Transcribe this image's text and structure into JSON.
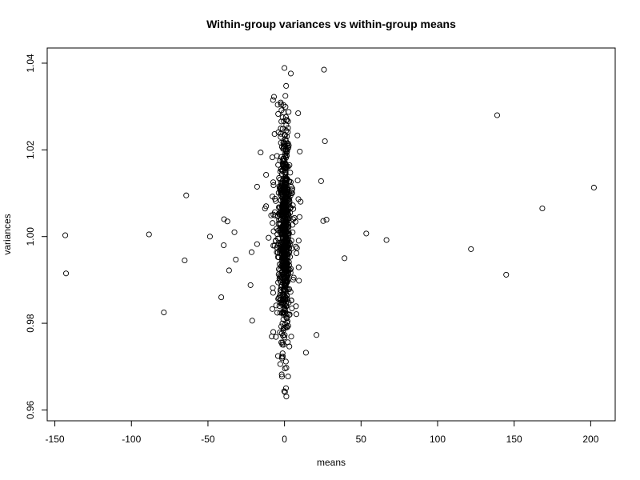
{
  "chart_data": {
    "type": "scatter",
    "title": "Within-group variances vs within-group means",
    "xlabel": "means",
    "ylabel": "variances",
    "xlim": [
      -155,
      216
    ],
    "ylim": [
      0.9575,
      1.0435
    ],
    "x_ticks": [
      -150,
      -100,
      -50,
      0,
      50,
      100,
      150,
      200
    ],
    "x_tick_labels": [
      "-150",
      "-100",
      "-50",
      "0",
      "50",
      "100",
      "150",
      "200"
    ],
    "y_ticks": [
      0.96,
      0.98,
      1.0,
      1.02,
      1.04
    ],
    "y_tick_labels": [
      "0.96",
      "0.98",
      "1.00",
      "1.02",
      "1.04"
    ],
    "grid": false,
    "legend": "none",
    "marker": "open-circle",
    "colors": {
      "points": "#000000",
      "background": "#ffffff"
    },
    "outliers": {
      "x": [
        -143.2,
        -142.7,
        -88.5,
        -78.8,
        -65.2,
        -64.2,
        -48.7,
        -41.3,
        -39.7,
        -39.5,
        -37.3,
        -36.2,
        -32.7,
        -31.8,
        -22.2,
        -21.5,
        -21.1,
        -17.9,
        -15.6,
        20.9,
        23.9,
        25.3,
        25.8,
        26.4,
        27.4,
        39.2,
        53.4,
        66.6,
        121.8,
        138.9,
        144.8,
        168.4,
        202.1
      ],
      "y": [
        1.0003,
        0.9915,
        1.0005,
        0.9825,
        0.9945,
        1.0095,
        1.0,
        0.986,
        0.998,
        1.004,
        1.0035,
        0.9922,
        1.001,
        0.9947,
        0.9888,
        0.9964,
        0.9806,
        1.0115,
        1.0194,
        0.9773,
        1.0128,
        1.0036,
        1.0385,
        1.022,
        1.0039,
        0.995,
        1.0007,
        0.9992,
        0.9971,
        1.028,
        0.9912,
        1.0065,
        1.0113
      ]
    },
    "core": {
      "count": 800,
      "x_spread": 2.8,
      "y_range": [
        0.9602,
        1.0415
      ]
    }
  }
}
